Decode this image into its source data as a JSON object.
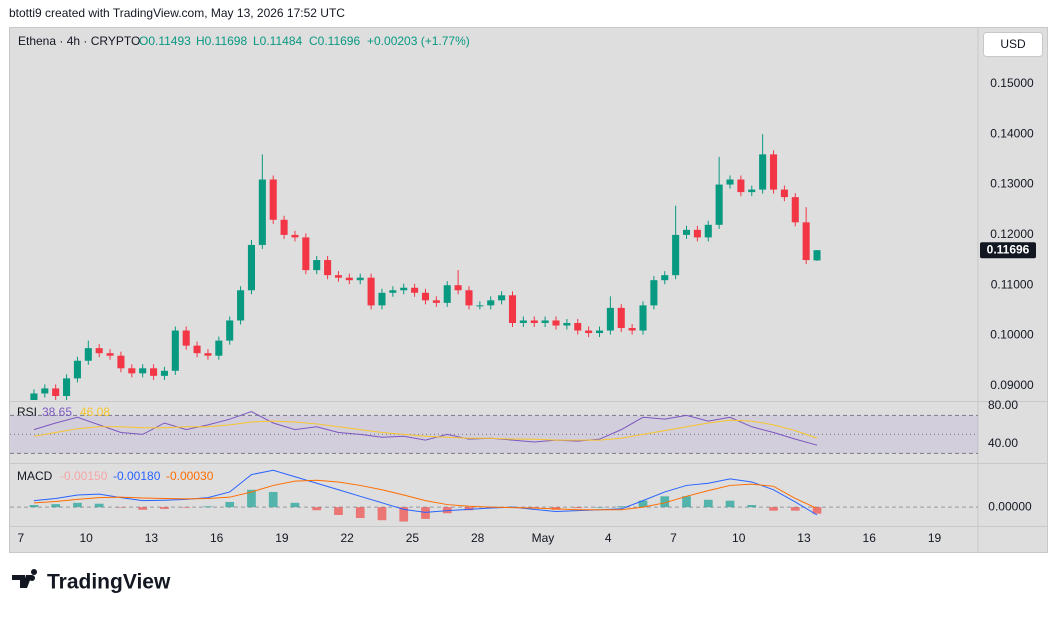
{
  "header": {
    "author_line": "btotti9 created with TradingView.com, May 13, 2026 17:52 UTC"
  },
  "footer": {
    "brand": "TradingView"
  },
  "chart_data": [
    {
      "type": "candlestick",
      "legend": {
        "symbol": "Ethena · 4h · CRYPTO",
        "open": "O0.11493",
        "high": "H0.11698",
        "low": "L0.11484",
        "close": "C0.11696",
        "change": "+0.00203 (+1.77%)"
      },
      "currency": "USD",
      "last_price_label": "0.11696",
      "up_color": "#089981",
      "down_color": "#f23645",
      "x": [
        0.6,
        1.1,
        1.6,
        2.1,
        2.6,
        3.1,
        3.6,
        4.1,
        4.6,
        5.1,
        5.6,
        6.1,
        6.6,
        7.1,
        7.6,
        8.1,
        8.6,
        9.1,
        9.6,
        10.1,
        10.6,
        11.1,
        11.6,
        12.1,
        12.6,
        13.1,
        13.6,
        14.1,
        14.6,
        15.1,
        15.6,
        16.1,
        16.6,
        17.1,
        17.6,
        18.1,
        18.6,
        19.1,
        19.6,
        20.1,
        20.6,
        21.1,
        21.6,
        22.1,
        22.6,
        23.1,
        23.6,
        24.1,
        24.6,
        25.1,
        25.6,
        26.1,
        26.6,
        27.1,
        27.6,
        28.1,
        28.6,
        29.1,
        29.6,
        30.1,
        30.6,
        31.1,
        31.6,
        32.1,
        32.6,
        33.1,
        33.6,
        34.1,
        34.6,
        35.1,
        35.6,
        36.1,
        36.6
      ],
      "open": [
        0.087,
        0.0885,
        0.0895,
        0.088,
        0.0915,
        0.095,
        0.0975,
        0.0965,
        0.096,
        0.0935,
        0.0925,
        0.0935,
        0.092,
        0.093,
        0.101,
        0.098,
        0.0965,
        0.096,
        0.099,
        0.103,
        0.109,
        0.118,
        0.131,
        0.123,
        0.12,
        0.1195,
        0.113,
        0.115,
        0.112,
        0.1115,
        0.111,
        0.1115,
        0.106,
        0.1085,
        0.109,
        0.1095,
        0.1085,
        0.107,
        0.1065,
        0.11,
        0.109,
        0.106,
        0.106,
        0.107,
        0.108,
        0.1025,
        0.103,
        0.1025,
        0.103,
        0.102,
        0.1025,
        0.101,
        0.1005,
        0.101,
        0.1055,
        0.1015,
        0.101,
        0.106,
        0.111,
        0.112,
        0.12,
        0.121,
        0.1195,
        0.122,
        0.13,
        0.131,
        0.1285,
        0.129,
        0.136,
        0.129,
        0.1275,
        0.1225,
        0.11493
      ],
      "high": [
        0.0893,
        0.0903,
        0.0903,
        0.0923,
        0.0958,
        0.099,
        0.0983,
        0.0973,
        0.0968,
        0.0943,
        0.0943,
        0.0943,
        0.0938,
        0.1018,
        0.1018,
        0.0988,
        0.0973,
        0.0998,
        0.1038,
        0.1098,
        0.119,
        0.136,
        0.1318,
        0.1238,
        0.1208,
        0.1203,
        0.1158,
        0.1158,
        0.1128,
        0.1123,
        0.1123,
        0.1123,
        0.1093,
        0.1098,
        0.1103,
        0.1103,
        0.1093,
        0.1078,
        0.1108,
        0.113,
        0.1098,
        0.1068,
        0.1078,
        0.1088,
        0.1088,
        0.1038,
        0.1038,
        0.1038,
        0.1038,
        0.1033,
        0.1033,
        0.1018,
        0.1018,
        0.1078,
        0.1063,
        0.1023,
        0.1068,
        0.1118,
        0.1128,
        0.1258,
        0.1218,
        0.1218,
        0.1228,
        0.1355,
        0.1318,
        0.1318,
        0.1298,
        0.14,
        0.1368,
        0.1298,
        0.1283,
        0.1255,
        0.11698
      ],
      "low": [
        0.0862,
        0.0877,
        0.0872,
        0.0872,
        0.0907,
        0.0942,
        0.0957,
        0.0952,
        0.0927,
        0.0917,
        0.0917,
        0.0912,
        0.0912,
        0.0922,
        0.0972,
        0.0957,
        0.0952,
        0.0952,
        0.0982,
        0.1022,
        0.1082,
        0.1172,
        0.1222,
        0.1192,
        0.1187,
        0.1122,
        0.1122,
        0.1112,
        0.1107,
        0.1102,
        0.1102,
        0.1052,
        0.1052,
        0.1077,
        0.1082,
        0.1077,
        0.1062,
        0.1057,
        0.1057,
        0.1082,
        0.1052,
        0.1052,
        0.1052,
        0.1062,
        0.1017,
        0.1017,
        0.1017,
        0.1017,
        0.1012,
        0.1012,
        0.1002,
        0.0997,
        0.0997,
        0.1002,
        0.1007,
        0.1002,
        0.1002,
        0.1052,
        0.1102,
        0.1112,
        0.1192,
        0.1187,
        0.1187,
        0.1212,
        0.1292,
        0.1277,
        0.1277,
        0.1282,
        0.1282,
        0.1267,
        0.1217,
        0.1142,
        0.11484
      ],
      "close": [
        0.0885,
        0.0895,
        0.088,
        0.0915,
        0.095,
        0.0975,
        0.0965,
        0.096,
        0.0935,
        0.0925,
        0.0935,
        0.092,
        0.093,
        0.101,
        0.098,
        0.0965,
        0.096,
        0.099,
        0.103,
        0.109,
        0.118,
        0.131,
        0.123,
        0.12,
        0.1195,
        0.113,
        0.115,
        0.112,
        0.1115,
        0.111,
        0.1115,
        0.106,
        0.1085,
        0.109,
        0.1095,
        0.1085,
        0.107,
        0.1065,
        0.11,
        0.109,
        0.106,
        0.106,
        0.107,
        0.108,
        0.1025,
        0.103,
        0.1025,
        0.103,
        0.102,
        0.1025,
        0.101,
        0.1005,
        0.101,
        0.1055,
        0.1015,
        0.101,
        0.106,
        0.111,
        0.112,
        0.12,
        0.121,
        0.1195,
        0.122,
        0.13,
        0.131,
        0.1285,
        0.129,
        0.136,
        0.129,
        0.1275,
        0.1225,
        0.115,
        0.11696
      ],
      "xlim": [
        -0.5,
        44
      ],
      "xticks": [
        {
          "value": 0,
          "label": "7"
        },
        {
          "value": 3,
          "label": "10"
        },
        {
          "value": 6,
          "label": "13"
        },
        {
          "value": 9,
          "label": "16"
        },
        {
          "value": 12,
          "label": "19"
        },
        {
          "value": 15,
          "label": "22"
        },
        {
          "value": 18,
          "label": "25"
        },
        {
          "value": 21,
          "label": "28"
        },
        {
          "value": 24,
          "label": "May"
        },
        {
          "value": 27,
          "label": "4"
        },
        {
          "value": 30,
          "label": "7"
        },
        {
          "value": 33,
          "label": "10"
        },
        {
          "value": 36,
          "label": "13"
        },
        {
          "value": 39,
          "label": "16"
        },
        {
          "value": 42,
          "label": "19"
        }
      ],
      "ylim": [
        0.0872,
        0.1611
      ],
      "yticks": [
        {
          "value": 0.09,
          "label": "0.09000"
        },
        {
          "value": 0.1,
          "label": "0.10000"
        },
        {
          "value": 0.11,
          "label": "0.11000"
        },
        {
          "value": 0.12,
          "label": "0.12000"
        },
        {
          "value": 0.13,
          "label": "0.13000"
        },
        {
          "value": 0.14,
          "label": "0.14000"
        },
        {
          "value": 0.15,
          "label": "0.15000"
        }
      ]
    },
    {
      "type": "line",
      "title": "RSI",
      "x": [
        0.6,
        1.6,
        2.6,
        3.6,
        4.6,
        5.6,
        6.6,
        7.6,
        8.6,
        9.6,
        10.6,
        11.6,
        12.6,
        13.6,
        14.6,
        15.6,
        16.6,
        17.6,
        18.6,
        19.6,
        20.6,
        21.6,
        22.6,
        23.6,
        24.6,
        25.6,
        26.6,
        27.6,
        28.6,
        29.6,
        30.6,
        31.6,
        32.6,
        33.6,
        34.6,
        35.6,
        36.6
      ],
      "series": [
        {
          "color": "#7e57c2",
          "values": [
            55,
            62,
            68,
            60,
            52,
            50,
            62,
            55,
            60,
            66,
            74,
            62,
            55,
            58,
            52,
            50,
            47,
            48,
            44,
            50,
            45,
            46,
            44,
            42,
            44,
            43,
            45,
            55,
            68,
            66,
            70,
            64,
            68,
            58,
            52,
            45,
            38.65
          ]
        },
        {
          "color": "#f7c52b",
          "values": [
            48,
            52,
            56,
            58,
            58,
            57,
            57,
            58,
            58,
            60,
            63,
            64,
            63,
            61,
            58,
            55,
            52,
            50,
            48,
            47,
            46,
            46,
            45,
            45,
            44,
            44,
            44,
            46,
            50,
            54,
            58,
            62,
            65,
            64,
            60,
            54,
            46.08
          ]
        }
      ],
      "bands": [
        30,
        50,
        70
      ],
      "ylim": [
        21,
        83
      ],
      "yticks": [
        {
          "value": 40,
          "label": "40.00"
        },
        {
          "value": 80,
          "label": "80.00"
        }
      ]
    },
    {
      "type": "macd",
      "title": "MACD",
      "legend_labels": [
        "-0.00150",
        "-0.00180",
        "-0.00030"
      ],
      "x": [
        0.6,
        1.6,
        2.6,
        3.6,
        4.6,
        5.6,
        6.6,
        7.6,
        8.6,
        9.6,
        10.6,
        11.6,
        12.6,
        13.6,
        14.6,
        15.6,
        16.6,
        17.6,
        18.6,
        19.6,
        20.6,
        21.6,
        22.6,
        23.6,
        24.6,
        25.6,
        26.6,
        27.6,
        28.6,
        29.6,
        30.6,
        31.6,
        32.6,
        33.6,
        34.6,
        35.6,
        36.6
      ],
      "histogram": [
        0.0005,
        0.0007,
        0.001,
        0.0008,
        -0.0001,
        -0.0006,
        -0.0004,
        -0.0001,
        0.0002,
        0.0012,
        0.004,
        0.0035,
        0.001,
        -0.0007,
        -0.0018,
        -0.0025,
        -0.003,
        -0.0033,
        -0.0027,
        -0.0014,
        -0.0007,
        -0.0002,
        0.0001,
        -0.0003,
        -0.0006,
        -0.0002,
        0.0,
        0.0002,
        0.0015,
        0.0025,
        0.0025,
        0.0017,
        0.0015,
        0.0005,
        -0.0008,
        -0.0008,
        -0.0015
      ],
      "histogram_colors": [
        "#26a69a",
        "#ef5350"
      ],
      "series": [
        {
          "color": "#2962ff",
          "values": [
            0.0015,
            0.002,
            0.0028,
            0.003,
            0.0022,
            0.0015,
            0.0016,
            0.0018,
            0.0022,
            0.0035,
            0.0075,
            0.0085,
            0.007,
            0.0055,
            0.004,
            0.0025,
            0.001,
            -0.0005,
            -0.0012,
            -0.0008,
            -0.0005,
            -0.0002,
            0.0,
            -0.0005,
            -0.001,
            -0.0008,
            -0.0006,
            -0.0004,
            0.0015,
            0.0035,
            0.005,
            0.0055,
            0.0065,
            0.0058,
            0.004,
            0.0012,
            -0.0018
          ]
        },
        {
          "color": "#ff6d00",
          "values": [
            0.001,
            0.0013,
            0.0018,
            0.0022,
            0.0023,
            0.0021,
            0.002,
            0.0019,
            0.002,
            0.0023,
            0.0035,
            0.005,
            0.006,
            0.0062,
            0.0058,
            0.005,
            0.004,
            0.0028,
            0.0015,
            0.0006,
            0.0002,
            0.0,
            -0.0001,
            -0.0002,
            -0.0004,
            -0.0006,
            -0.0006,
            -0.0006,
            0.0,
            0.001,
            0.0025,
            0.0038,
            0.005,
            0.0053,
            0.0048,
            0.002,
            -0.0003
          ]
        }
      ],
      "ylim": [
        -0.0041,
        0.0097
      ],
      "yticks": [
        {
          "value": 0,
          "label": "0.00000"
        }
      ]
    }
  ]
}
